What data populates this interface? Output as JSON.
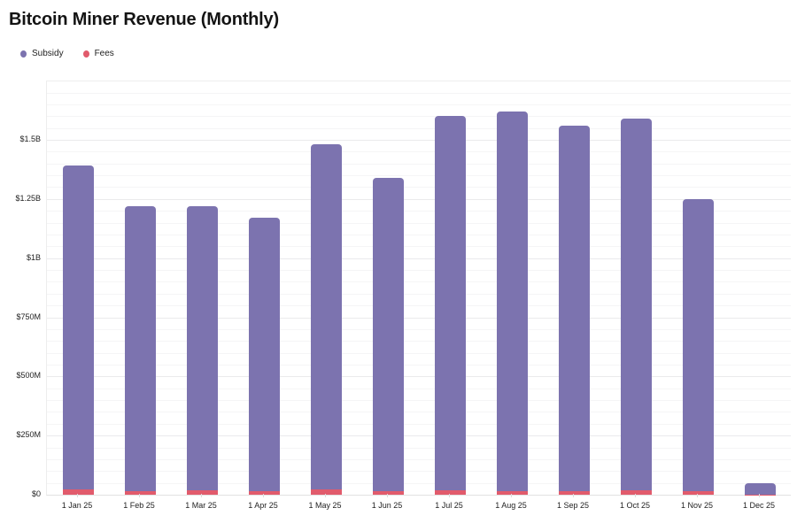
{
  "page": {
    "title": "Bitcoin Miner Revenue (Monthly)"
  },
  "legend": {
    "items": [
      {
        "label": "Subsidy",
        "color": "#7c73af"
      },
      {
        "label": "Fees",
        "color": "#e15b6c"
      }
    ]
  },
  "chart_data": {
    "type": "bar",
    "stacked": true,
    "title": "Bitcoin Miner Revenue (Monthly)",
    "unit": "USD billions",
    "categories": [
      "1 Jan 25",
      "1 Feb 25",
      "1 Mar 25",
      "1 Apr 25",
      "1 May 25",
      "1 Jun 25",
      "1 Jul 25",
      "1 Aug 25",
      "1 Sep 25",
      "1 Oct 25",
      "1 Nov 25",
      "1 Dec 25"
    ],
    "series": [
      {
        "name": "Subsidy",
        "color": "#7c73af",
        "values_billions": [
          1.369,
          1.204,
          1.203,
          1.154,
          1.459,
          1.324,
          1.581,
          1.604,
          1.544,
          1.573,
          1.235,
          0.047
        ]
      },
      {
        "name": "Fees",
        "color": "#e15b6c",
        "values_billions": [
          0.021,
          0.016,
          0.017,
          0.016,
          0.021,
          0.016,
          0.019,
          0.016,
          0.016,
          0.017,
          0.015,
          0.001
        ]
      }
    ],
    "totals_billions": [
      1.39,
      1.22,
      1.22,
      1.17,
      1.48,
      1.34,
      1.6,
      1.62,
      1.56,
      1.59,
      1.25,
      0.048
    ],
    "ylim": [
      0,
      1.747
    ],
    "yticks": [
      {
        "value": 0,
        "label": "$0"
      },
      {
        "value": 0.25,
        "label": "$250M"
      },
      {
        "value": 0.5,
        "label": "$500M"
      },
      {
        "value": 0.75,
        "label": "$750M"
      },
      {
        "value": 1,
        "label": "$1B"
      },
      {
        "value": 1.25,
        "label": "$1.25B"
      },
      {
        "value": 1.5,
        "label": "$1.5B"
      }
    ],
    "minor_grid_step": 0.05,
    "major_grid_step": 0.25,
    "grid": true,
    "legend_position": "top-left",
    "xlabel": "",
    "ylabel": ""
  }
}
